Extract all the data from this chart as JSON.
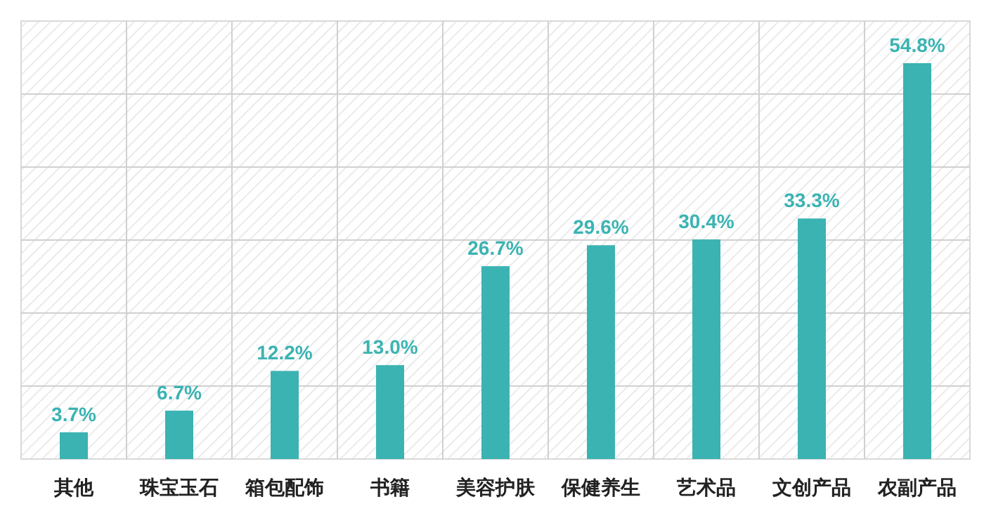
{
  "chart_data": {
    "type": "bar",
    "categories": [
      "其他",
      "珠宝玉石",
      "箱包配饰",
      "书籍",
      "美容护肤",
      "保健养生",
      "艺术品",
      "文创产品",
      "农副产品"
    ],
    "values": [
      3.7,
      6.7,
      12.2,
      13.0,
      26.7,
      29.6,
      30.4,
      33.3,
      54.8
    ],
    "value_labels": [
      "3.7%",
      "6.7%",
      "12.2%",
      "13.0%",
      "26.7%",
      "29.6%",
      "30.4%",
      "33.3%",
      "54.8%"
    ],
    "color": "#3bb3b3",
    "grid": true
  }
}
